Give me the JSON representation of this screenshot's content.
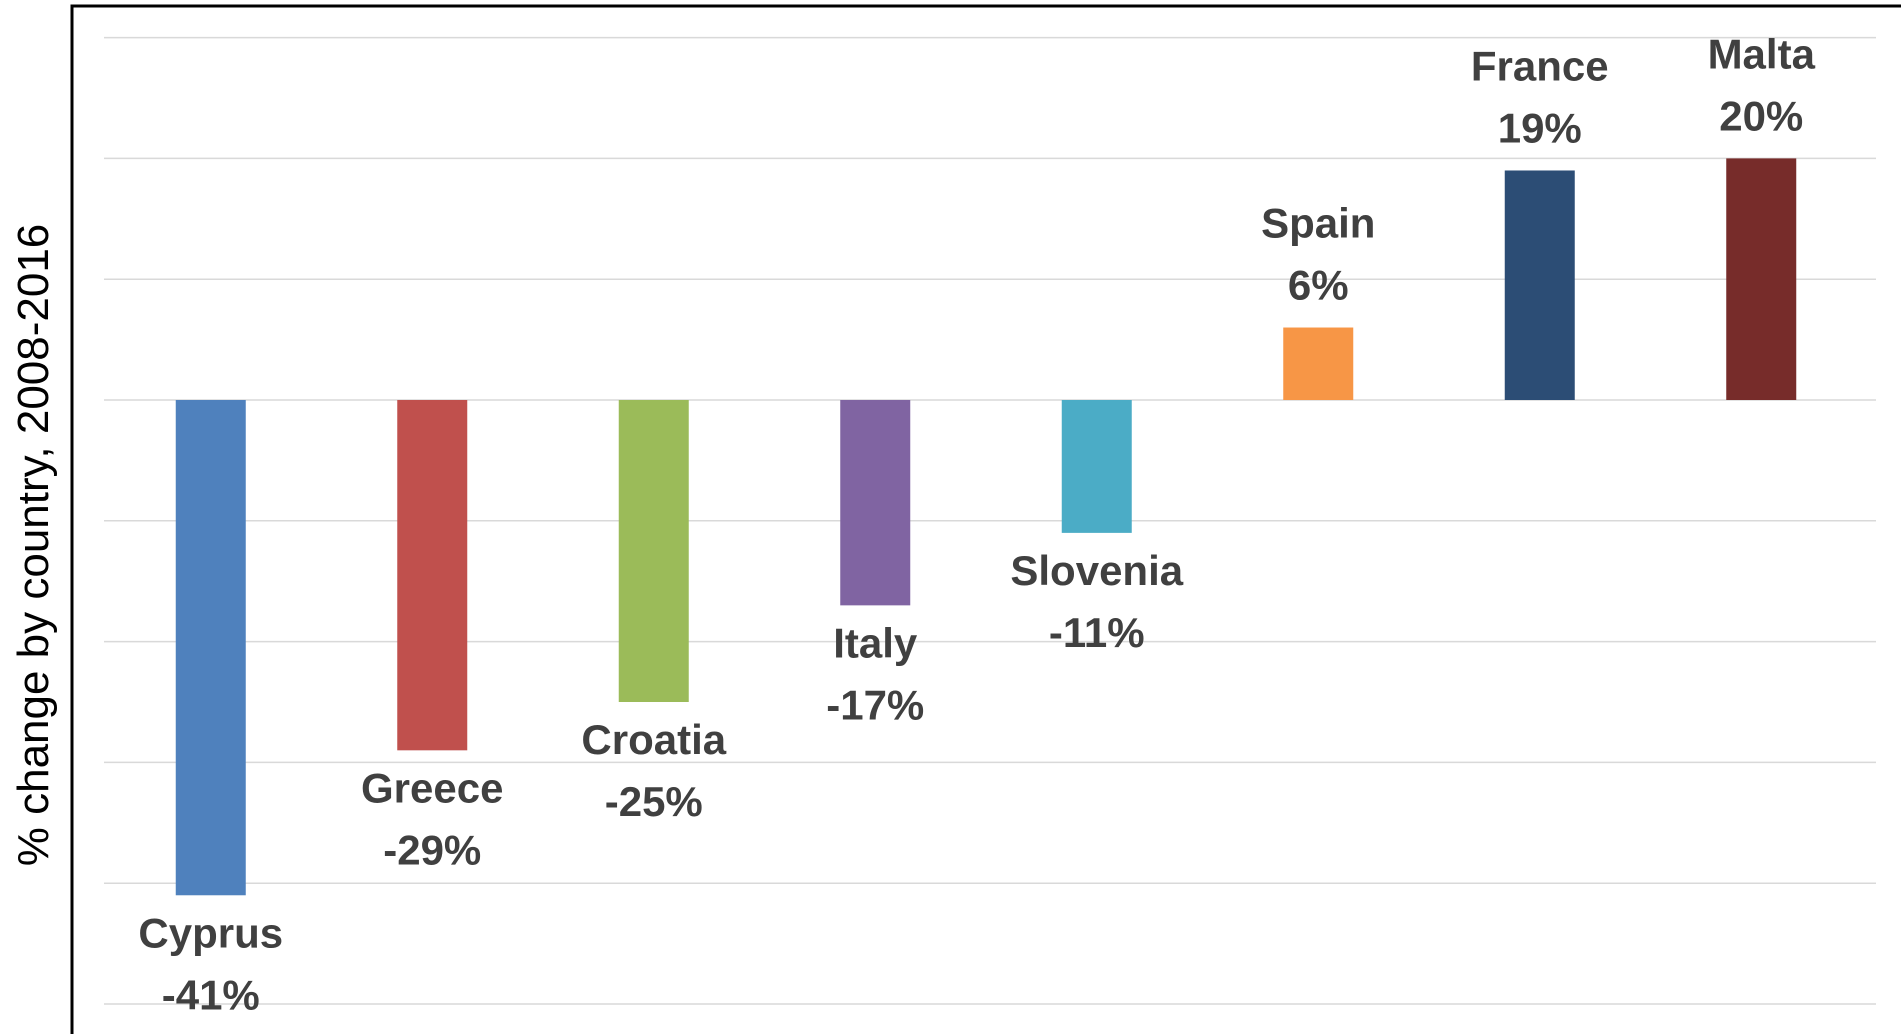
{
  "chart_data": {
    "type": "bar",
    "title": "",
    "xlabel": "",
    "ylabel": "% change by country, 2008-2016",
    "ylim": [
      -50,
      30
    ],
    "grid": true,
    "legend": "none",
    "categories": [
      "Cyprus",
      "Greece",
      "Croatia",
      "Italy",
      "Slovenia",
      "Spain",
      "France",
      "Malta"
    ],
    "values": [
      -41,
      -29,
      -25,
      -17,
      -11,
      6,
      19,
      20
    ],
    "value_labels": [
      "-41%",
      "-29%",
      "-25%",
      "-17%",
      "-11%",
      "6%",
      "19%",
      "20%"
    ],
    "colors": [
      "#4f81bd",
      "#c0504d",
      "#9bbb59",
      "#8064a2",
      "#4bacc6",
      "#f79646",
      "#2c4d75",
      "#772c2a"
    ]
  }
}
